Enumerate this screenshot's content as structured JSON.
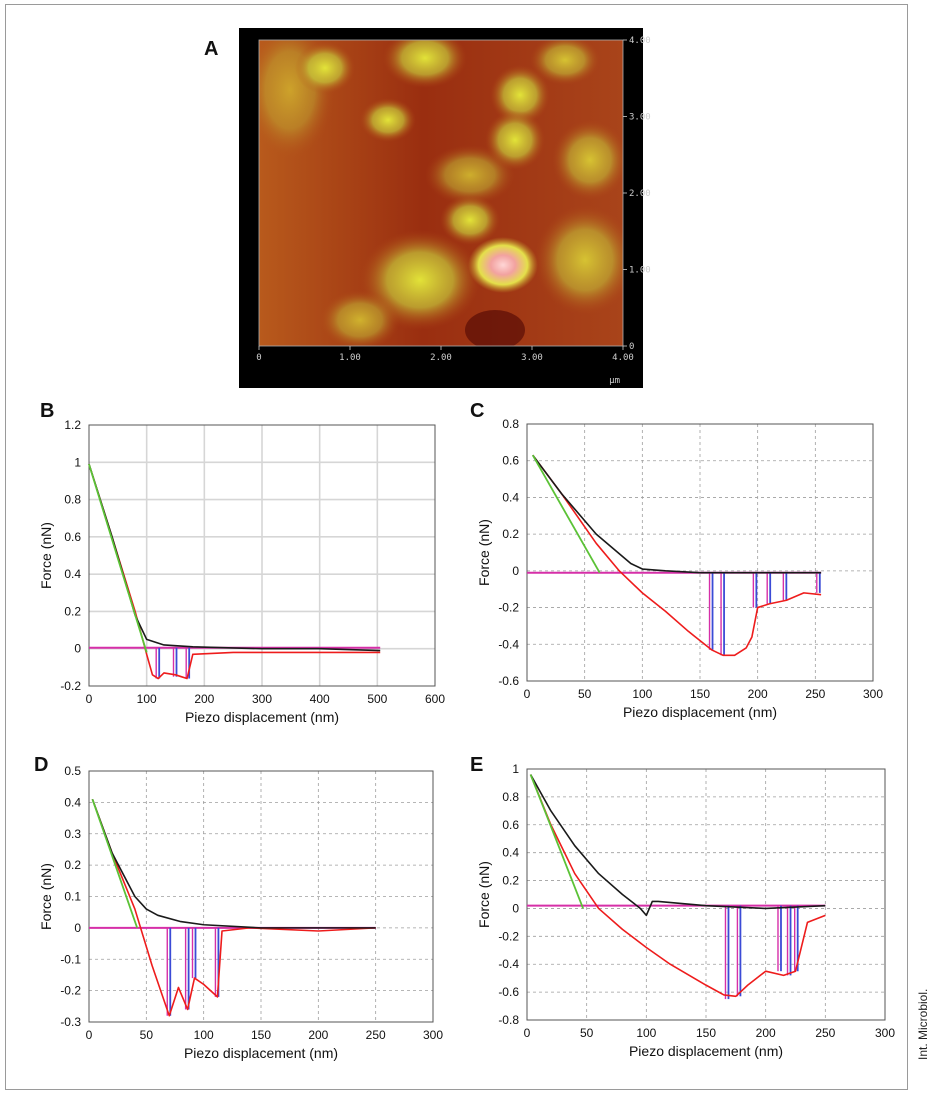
{
  "credit": "Int. Microbiol.",
  "panels": [
    "A",
    "B",
    "C",
    "D",
    "E"
  ],
  "afm": {
    "x_ticks": [
      "0",
      "1.00",
      "2.00",
      "3.00",
      "4.00"
    ],
    "y_ticks": [
      "0",
      "1.00",
      "2.00",
      "3.00",
      "4.00"
    ],
    "unit": "µm"
  },
  "colors": {
    "approach": "#1a1a1a",
    "retract": "#ee1c1c",
    "fit": "#5bc236",
    "baseline": "#d62fa8",
    "events": "#3b4bd6",
    "grid": "#9e9e9e"
  },
  "chart_data": [
    {
      "panel": "B",
      "type": "line",
      "xlabel": "Piezo displacement (nm)",
      "ylabel": "Force (nN)",
      "xlim": [
        0,
        600
      ],
      "ylim": [
        -0.2,
        1.2
      ],
      "xticks": [
        0,
        100,
        200,
        300,
        400,
        500,
        600
      ],
      "yticks": [
        -0.2,
        0,
        0.2,
        0.4,
        0.6,
        0.8,
        1,
        1.2
      ],
      "ytick_labels": [
        "-0.2",
        "0",
        "0.2",
        "0.4",
        "0.6",
        "0.8",
        "1",
        "1.2"
      ],
      "grid": "solid",
      "series": [
        {
          "role": "approach",
          "x": [
            0,
            40,
            80,
            100,
            130,
            180,
            300,
            400,
            505
          ],
          "y": [
            0.99,
            0.6,
            0.18,
            0.05,
            0.02,
            0.01,
            0.0,
            0.0,
            -0.01
          ]
        },
        {
          "role": "retract",
          "x": [
            0,
            40,
            80,
            100,
            110,
            120,
            130,
            150,
            160,
            170,
            180,
            250,
            350,
            450,
            505
          ],
          "y": [
            0.99,
            0.6,
            0.2,
            -0.03,
            -0.14,
            -0.16,
            -0.13,
            -0.14,
            -0.15,
            -0.16,
            -0.03,
            -0.02,
            -0.02,
            -0.02,
            -0.02
          ]
        },
        {
          "role": "fit",
          "x": [
            0,
            100
          ],
          "y": [
            0.99,
            -0.02
          ]
        },
        {
          "role": "baseline",
          "x": [
            0,
            505
          ],
          "y": [
            0.005,
            0.005
          ]
        },
        {
          "role": "events",
          "x": [
            120,
            150,
            172
          ],
          "y": [
            -0.16,
            -0.15,
            -0.16
          ]
        }
      ]
    },
    {
      "panel": "C",
      "type": "line",
      "xlabel": "Piezo displacement (nm)",
      "ylabel": "Force (nN)",
      "xlim": [
        0,
        300
      ],
      "ylim": [
        -0.6,
        0.8
      ],
      "xticks": [
        0,
        50,
        100,
        150,
        200,
        250,
        300
      ],
      "yticks": [
        -0.6,
        -0.4,
        -0.2,
        0,
        0.2,
        0.4,
        0.6,
        0.8
      ],
      "ytick_labels": [
        "-0.6",
        "-0.4",
        "-0.2",
        "0",
        "0.2",
        "0.4",
        "0.6",
        "0.8"
      ],
      "grid": "dashed",
      "series": [
        {
          "role": "approach",
          "x": [
            5,
            30,
            60,
            90,
            100,
            120,
            150,
            200,
            255
          ],
          "y": [
            0.63,
            0.42,
            0.2,
            0.04,
            0.01,
            0.0,
            -0.01,
            -0.01,
            -0.01
          ]
        },
        {
          "role": "retract",
          "x": [
            5,
            30,
            60,
            80,
            100,
            120,
            140,
            160,
            170,
            180,
            190,
            195,
            200,
            210,
            225,
            240,
            255
          ],
          "y": [
            0.63,
            0.42,
            0.15,
            0.0,
            -0.12,
            -0.22,
            -0.33,
            -0.43,
            -0.46,
            -0.46,
            -0.42,
            -0.36,
            -0.2,
            -0.18,
            -0.16,
            -0.12,
            -0.13
          ]
        },
        {
          "role": "fit",
          "x": [
            5,
            63
          ],
          "y": [
            0.63,
            -0.01
          ]
        },
        {
          "role": "baseline",
          "x": [
            0,
            255
          ],
          "y": [
            -0.01,
            -0.01
          ]
        },
        {
          "role": "events",
          "x": [
            160,
            170,
            198,
            210,
            224,
            253
          ],
          "y": [
            -0.43,
            -0.46,
            -0.2,
            -0.18,
            -0.16,
            -0.12
          ]
        }
      ]
    },
    {
      "panel": "D",
      "type": "line",
      "xlabel": "Piezo displacement (nm)",
      "ylabel": "Force (nN)",
      "xlim": [
        0,
        300
      ],
      "ylim": [
        -0.3,
        0.5
      ],
      "xticks": [
        0,
        50,
        100,
        150,
        200,
        250,
        300
      ],
      "yticks": [
        -0.3,
        -0.2,
        -0.1,
        0,
        0.1,
        0.2,
        0.3,
        0.4,
        0.5
      ],
      "ytick_labels": [
        "-0.3",
        "-0.2",
        "-0.1",
        "0",
        "0.1",
        "0.2",
        "0.3",
        "0.4",
        "0.5"
      ],
      "grid": "dashed",
      "series": [
        {
          "role": "approach",
          "x": [
            3,
            20,
            40,
            50,
            60,
            80,
            100,
            150,
            200,
            250
          ],
          "y": [
            0.41,
            0.24,
            0.1,
            0.06,
            0.04,
            0.02,
            0.01,
            0.0,
            0.0,
            0.0
          ]
        },
        {
          "role": "retract",
          "x": [
            3,
            20,
            40,
            55,
            70,
            78,
            86,
            92,
            100,
            112,
            116,
            140,
            200,
            250
          ],
          "y": [
            0.41,
            0.24,
            0.06,
            -0.12,
            -0.28,
            -0.19,
            -0.26,
            -0.16,
            -0.18,
            -0.22,
            -0.01,
            0.0,
            -0.01,
            0.0
          ]
        },
        {
          "role": "fit",
          "x": [
            3,
            42
          ],
          "y": [
            0.41,
            0.0
          ]
        },
        {
          "role": "baseline",
          "x": [
            0,
            250
          ],
          "y": [
            0.0,
            0.0
          ]
        },
        {
          "role": "events",
          "x": [
            70,
            86,
            92,
            112
          ],
          "y": [
            -0.28,
            -0.26,
            -0.16,
            -0.22
          ]
        }
      ]
    },
    {
      "panel": "E",
      "type": "line",
      "xlabel": "Piezo displacement (nm)",
      "ylabel": "Force (nN)",
      "xlim": [
        0,
        300
      ],
      "ylim": [
        -0.8,
        1.0
      ],
      "xticks": [
        0,
        50,
        100,
        150,
        200,
        250,
        300
      ],
      "yticks": [
        -0.8,
        -0.6,
        -0.4,
        -0.2,
        0,
        0.2,
        0.4,
        0.6,
        0.8,
        1
      ],
      "ytick_labels": [
        "-0.8",
        "-0.6",
        "-0.4",
        "-0.2",
        "0",
        "0.2",
        "0.4",
        "0.6",
        "0.8",
        "1"
      ],
      "grid": "dashed",
      "series": [
        {
          "role": "approach",
          "x": [
            3,
            20,
            40,
            60,
            80,
            95,
            100,
            105,
            110,
            150,
            200,
            250
          ],
          "y": [
            0.96,
            0.7,
            0.45,
            0.25,
            0.1,
            0.0,
            -0.05,
            0.05,
            0.05,
            0.02,
            0.0,
            0.02
          ]
        },
        {
          "role": "retract",
          "x": [
            3,
            20,
            40,
            60,
            80,
            100,
            120,
            150,
            165,
            175,
            185,
            200,
            215,
            225,
            235,
            250
          ],
          "y": [
            0.96,
            0.6,
            0.25,
            0.0,
            -0.15,
            -0.28,
            -0.4,
            -0.55,
            -0.62,
            -0.63,
            -0.55,
            -0.45,
            -0.48,
            -0.45,
            -0.1,
            -0.05
          ]
        },
        {
          "role": "fit",
          "x": [
            3,
            47
          ],
          "y": [
            0.96,
            0.0
          ]
        },
        {
          "role": "baseline",
          "x": [
            0,
            250
          ],
          "y": [
            0.02,
            0.02
          ]
        },
        {
          "role": "events",
          "x": [
            168,
            178,
            212,
            220,
            226
          ],
          "y": [
            -0.65,
            -0.63,
            -0.45,
            -0.48,
            -0.45
          ]
        }
      ]
    }
  ]
}
